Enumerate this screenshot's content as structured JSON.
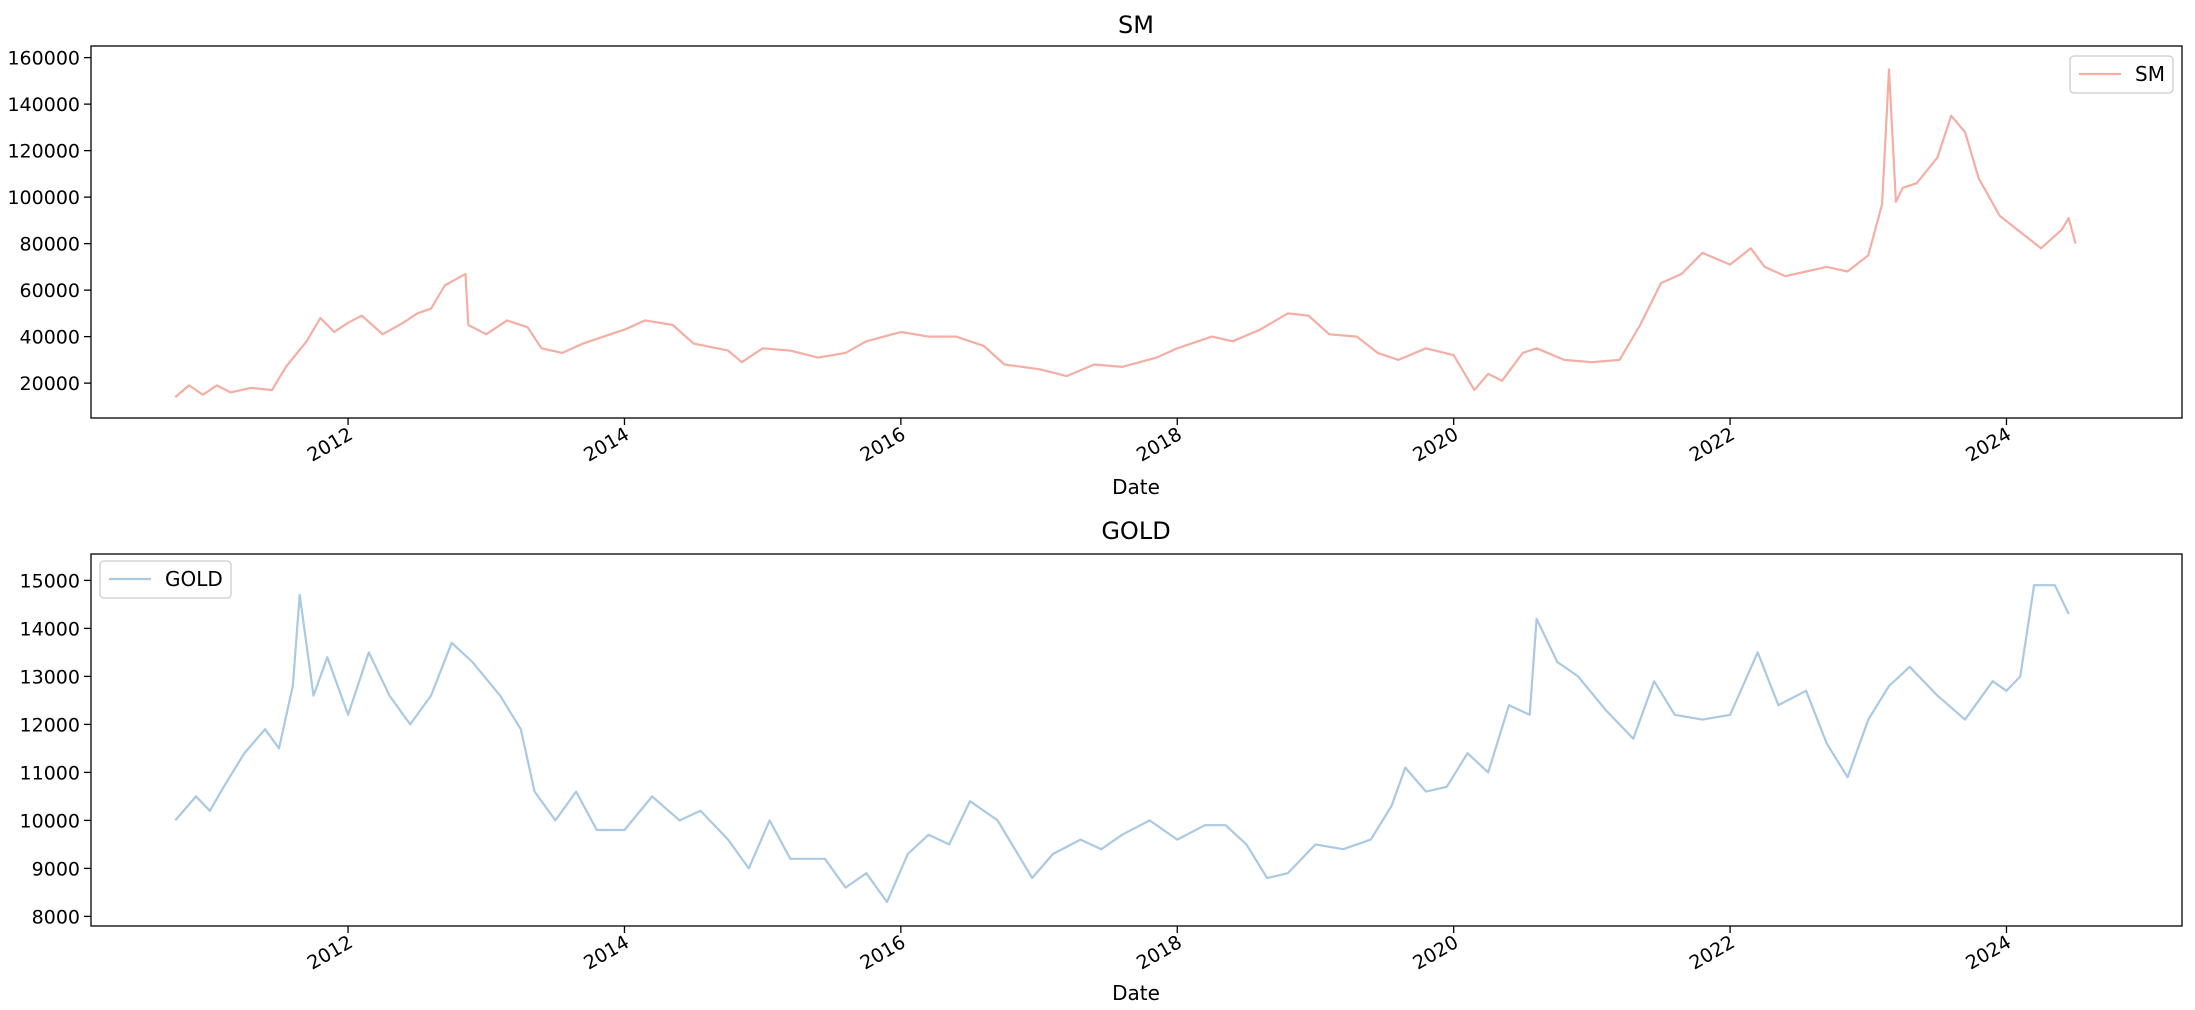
{
  "chart_data": [
    {
      "type": "line",
      "title": "SM",
      "xlabel": "Date",
      "ylabel": "",
      "ylim": [
        5000,
        165000
      ],
      "y_ticks": [
        20000,
        40000,
        60000,
        80000,
        100000,
        120000,
        140000,
        160000
      ],
      "xlim": [
        2010.14,
        2025.27
      ],
      "x_ticks": [
        "2012",
        "2014",
        "2016",
        "2018",
        "2020",
        "2022",
        "2024"
      ],
      "grid": false,
      "legend_position": "upper right",
      "series": [
        {
          "name": "SM",
          "color": "#f4aea4",
          "x": [
            2010.75,
            2010.85,
            2010.95,
            2011.05,
            2011.15,
            2011.3,
            2011.45,
            2011.55,
            2011.7,
            2011.8,
            2011.9,
            2012.0,
            2012.1,
            2012.25,
            2012.4,
            2012.5,
            2012.6,
            2012.7,
            2012.85,
            2012.87,
            2013.0,
            2013.15,
            2013.3,
            2013.4,
            2013.55,
            2013.7,
            2013.85,
            2014.0,
            2014.15,
            2014.35,
            2014.5,
            2014.75,
            2014.85,
            2015.0,
            2015.2,
            2015.4,
            2015.6,
            2015.75,
            2016.0,
            2016.2,
            2016.4,
            2016.6,
            2016.75,
            2017.0,
            2017.2,
            2017.4,
            2017.6,
            2017.85,
            2018.0,
            2018.25,
            2018.4,
            2018.6,
            2018.8,
            2018.95,
            2019.1,
            2019.3,
            2019.45,
            2019.6,
            2019.8,
            2020.0,
            2020.15,
            2020.25,
            2020.35,
            2020.5,
            2020.6,
            2020.8,
            2021.0,
            2021.2,
            2021.35,
            2021.5,
            2021.65,
            2021.8,
            2022.0,
            2022.15,
            2022.25,
            2022.4,
            2022.55,
            2022.7,
            2022.85,
            2023.0,
            2023.1,
            2023.15,
            2023.2,
            2023.25,
            2023.35,
            2023.5,
            2023.6,
            2023.7,
            2023.8,
            2023.95,
            2024.1,
            2024.25,
            2024.4,
            2024.45,
            2024.5
          ],
          "values": [
            14000,
            19000,
            15000,
            19000,
            16000,
            18000,
            17000,
            27000,
            38000,
            48000,
            42000,
            46000,
            49000,
            41000,
            46000,
            50000,
            52000,
            62000,
            67000,
            45000,
            41000,
            47000,
            44000,
            35000,
            33000,
            37000,
            40000,
            43000,
            47000,
            45000,
            37000,
            34000,
            29000,
            35000,
            34000,
            31000,
            33000,
            38000,
            42000,
            40000,
            40000,
            36000,
            28000,
            26000,
            23000,
            28000,
            27000,
            31000,
            35000,
            40000,
            38000,
            43000,
            50000,
            49000,
            41000,
            40000,
            33000,
            30000,
            35000,
            32000,
            17000,
            24000,
            21000,
            33000,
            35000,
            30000,
            29000,
            30000,
            45000,
            63000,
            67000,
            76000,
            71000,
            78000,
            70000,
            66000,
            68000,
            70000,
            68000,
            75000,
            97000,
            155000,
            98000,
            104000,
            106000,
            117000,
            135000,
            128000,
            108000,
            92000,
            85000,
            78000,
            86000,
            91000,
            80000
          ]
        }
      ]
    },
    {
      "type": "line",
      "title": "GOLD",
      "xlabel": "Date",
      "ylabel": "",
      "ylim": [
        7800,
        15550
      ],
      "y_ticks": [
        8000,
        9000,
        10000,
        11000,
        12000,
        13000,
        14000,
        15000
      ],
      "xlim": [
        2010.14,
        2025.27
      ],
      "x_ticks": [
        "2012",
        "2014",
        "2016",
        "2018",
        "2020",
        "2022",
        "2024"
      ],
      "grid": false,
      "legend_position": "upper left",
      "series": [
        {
          "name": "GOLD",
          "color": "#aac9e3",
          "x": [
            2010.75,
            2010.9,
            2011.0,
            2011.1,
            2011.25,
            2011.4,
            2011.5,
            2011.6,
            2011.65,
            2011.75,
            2011.85,
            2012.0,
            2012.15,
            2012.3,
            2012.45,
            2012.6,
            2012.75,
            2012.9,
            2013.1,
            2013.25,
            2013.35,
            2013.5,
            2013.65,
            2013.8,
            2014.0,
            2014.2,
            2014.4,
            2014.55,
            2014.75,
            2014.9,
            2015.05,
            2015.2,
            2015.45,
            2015.6,
            2015.75,
            2015.9,
            2016.05,
            2016.2,
            2016.35,
            2016.5,
            2016.7,
            2016.95,
            2017.1,
            2017.3,
            2017.45,
            2017.6,
            2017.8,
            2018.0,
            2018.2,
            2018.35,
            2018.5,
            2018.65,
            2018.8,
            2019.0,
            2019.2,
            2019.4,
            2019.55,
            2019.65,
            2019.8,
            2019.95,
            2020.1,
            2020.25,
            2020.4,
            2020.55,
            2020.6,
            2020.75,
            2020.9,
            2021.1,
            2021.3,
            2021.45,
            2021.6,
            2021.8,
            2022.0,
            2022.2,
            2022.35,
            2022.55,
            2022.7,
            2022.85,
            2023.0,
            2023.15,
            2023.3,
            2023.5,
            2023.7,
            2023.9,
            2024.0,
            2024.1,
            2024.2,
            2024.35,
            2024.45
          ],
          "values": [
            10000,
            10500,
            10200,
            10700,
            11400,
            11900,
            11500,
            12800,
            14700,
            12600,
            13400,
            12200,
            13500,
            12600,
            12000,
            12600,
            13700,
            13300,
            12600,
            11900,
            10600,
            10000,
            10600,
            9800,
            9800,
            10500,
            10000,
            10200,
            9600,
            9000,
            10000,
            9200,
            9200,
            8600,
            8900,
            8300,
            9300,
            9700,
            9500,
            10400,
            10000,
            8800,
            9300,
            9600,
            9400,
            9700,
            10000,
            9600,
            9900,
            9900,
            9500,
            8800,
            8900,
            9500,
            9400,
            9600,
            10300,
            11100,
            10600,
            10700,
            11400,
            11000,
            12400,
            12200,
            14200,
            13300,
            13000,
            12300,
            11700,
            12900,
            12200,
            12100,
            12200,
            13500,
            12400,
            12700,
            11600,
            10900,
            12100,
            12800,
            13200,
            12600,
            12100,
            12900,
            12700,
            13000,
            14900,
            14900,
            14300
          ]
        }
      ]
    }
  ]
}
